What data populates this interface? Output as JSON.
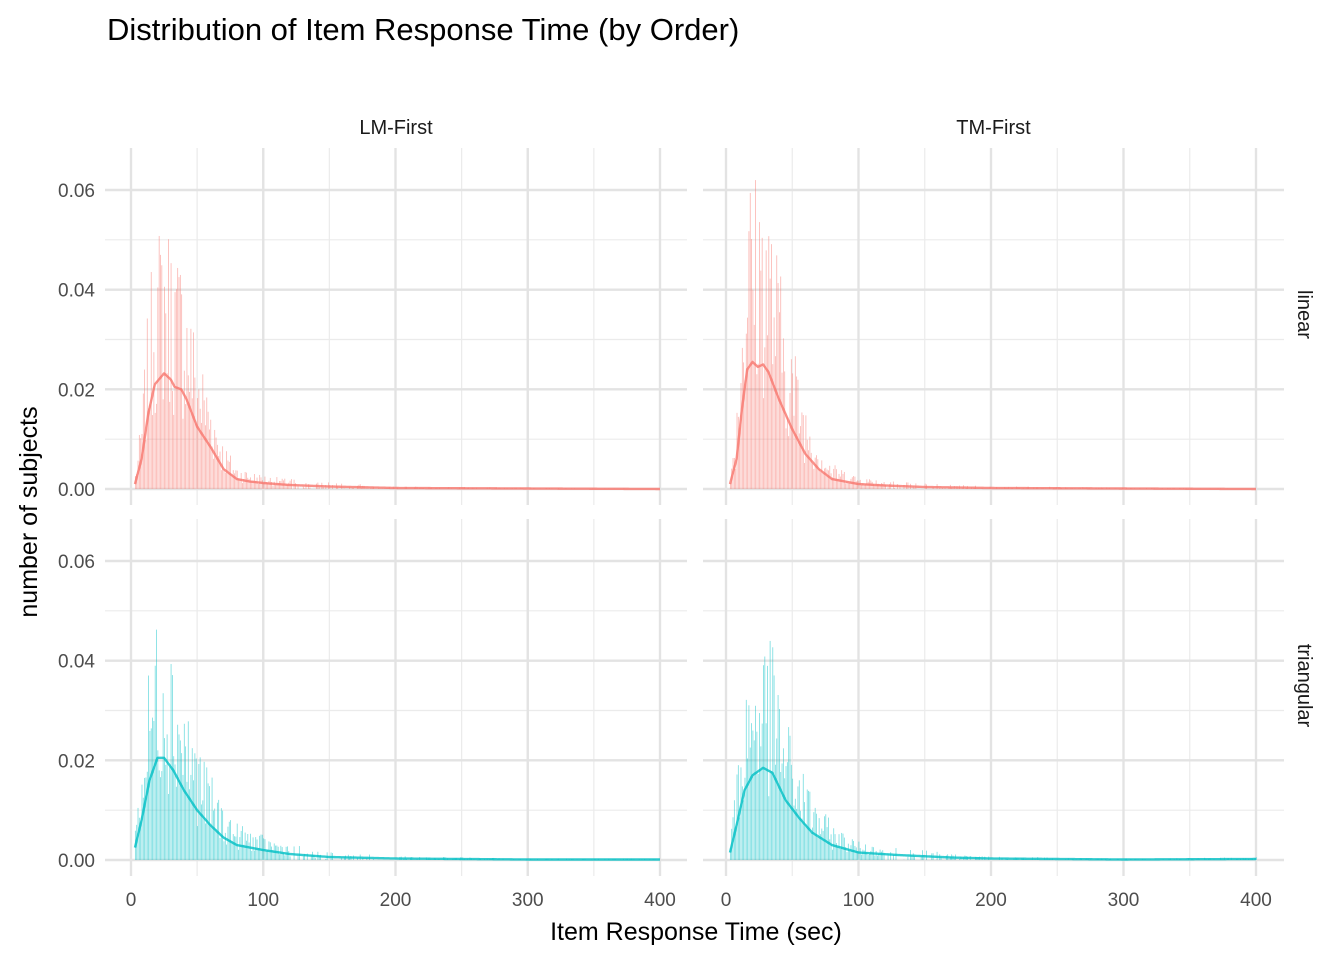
{
  "chart_data": {
    "type": "histogram-density",
    "title": "Distribution of Item Response Time (by Order)",
    "xlabel": "Item Response Time (sec)",
    "ylabel": "number of subjects",
    "xlim": [
      0,
      400
    ],
    "ylim": [
      0,
      0.065
    ],
    "x_ticks": [
      0,
      100,
      200,
      300,
      400
    ],
    "x_tick_labels": [
      "0",
      "100",
      "200",
      "300",
      "400"
    ],
    "y_ticks": [
      0,
      0.02,
      0.04,
      0.06
    ],
    "y_tick_labels": [
      "0.00",
      "0.02",
      "0.04",
      "0.06"
    ],
    "grid": true,
    "column_facets": [
      "LM-First",
      "TM-First"
    ],
    "row_facets": [
      "linear",
      "triangular"
    ],
    "colors": {
      "linear": "#F8766D",
      "triangular": "#00BFC4"
    },
    "bin_width_sec": 1,
    "panels": [
      {
        "col": "LM-First",
        "row": "linear",
        "peak_x": 25,
        "peak_density": 0.0232,
        "max_bar": 0.055,
        "density": [
          [
            3,
            0.001
          ],
          [
            8,
            0.006
          ],
          [
            13,
            0.015
          ],
          [
            18,
            0.021
          ],
          [
            25,
            0.0232
          ],
          [
            30,
            0.022
          ],
          [
            33,
            0.0205
          ],
          [
            38,
            0.02
          ],
          [
            42,
            0.018
          ],
          [
            50,
            0.0125
          ],
          [
            60,
            0.0085
          ],
          [
            70,
            0.004
          ],
          [
            80,
            0.002
          ],
          [
            90,
            0.0015
          ],
          [
            100,
            0.0012
          ],
          [
            120,
            0.0008
          ],
          [
            150,
            0.0005
          ],
          [
            200,
            0.0002
          ],
          [
            300,
            0.0001
          ],
          [
            400,
            0.0
          ]
        ]
      },
      {
        "col": "TM-First",
        "row": "linear",
        "peak_x": 20,
        "peak_density": 0.0255,
        "max_bar": 0.065,
        "density": [
          [
            3,
            0.001
          ],
          [
            8,
            0.006
          ],
          [
            12,
            0.016
          ],
          [
            16,
            0.024
          ],
          [
            20,
            0.0255
          ],
          [
            24,
            0.0245
          ],
          [
            28,
            0.025
          ],
          [
            32,
            0.0235
          ],
          [
            40,
            0.018
          ],
          [
            50,
            0.012
          ],
          [
            60,
            0.007
          ],
          [
            70,
            0.004
          ],
          [
            80,
            0.002
          ],
          [
            100,
            0.001
          ],
          [
            120,
            0.0007
          ],
          [
            150,
            0.0004
          ],
          [
            200,
            0.0002
          ],
          [
            300,
            0.0001
          ],
          [
            400,
            0.0
          ]
        ]
      },
      {
        "col": "LM-First",
        "row": "triangular",
        "peak_x": 25,
        "peak_density": 0.0205,
        "max_bar": 0.05,
        "density": [
          [
            3,
            0.0025
          ],
          [
            8,
            0.008
          ],
          [
            14,
            0.016
          ],
          [
            20,
            0.0205
          ],
          [
            25,
            0.0205
          ],
          [
            32,
            0.018
          ],
          [
            40,
            0.014
          ],
          [
            50,
            0.01
          ],
          [
            60,
            0.007
          ],
          [
            70,
            0.0045
          ],
          [
            80,
            0.003
          ],
          [
            100,
            0.002
          ],
          [
            120,
            0.0012
          ],
          [
            150,
            0.0006
          ],
          [
            200,
            0.0003
          ],
          [
            300,
            0.0001
          ],
          [
            400,
            0.0001
          ]
        ]
      },
      {
        "col": "TM-First",
        "row": "triangular",
        "peak_x": 28,
        "peak_density": 0.0185,
        "max_bar": 0.045,
        "density": [
          [
            3,
            0.0015
          ],
          [
            8,
            0.007
          ],
          [
            14,
            0.014
          ],
          [
            20,
            0.017
          ],
          [
            28,
            0.0185
          ],
          [
            35,
            0.0175
          ],
          [
            45,
            0.012
          ],
          [
            55,
            0.0085
          ],
          [
            65,
            0.0055
          ],
          [
            80,
            0.003
          ],
          [
            100,
            0.0015
          ],
          [
            130,
            0.001
          ],
          [
            170,
            0.0005
          ],
          [
            200,
            0.0003
          ],
          [
            300,
            0.0001
          ],
          [
            400,
            0.0002
          ]
        ]
      }
    ]
  }
}
